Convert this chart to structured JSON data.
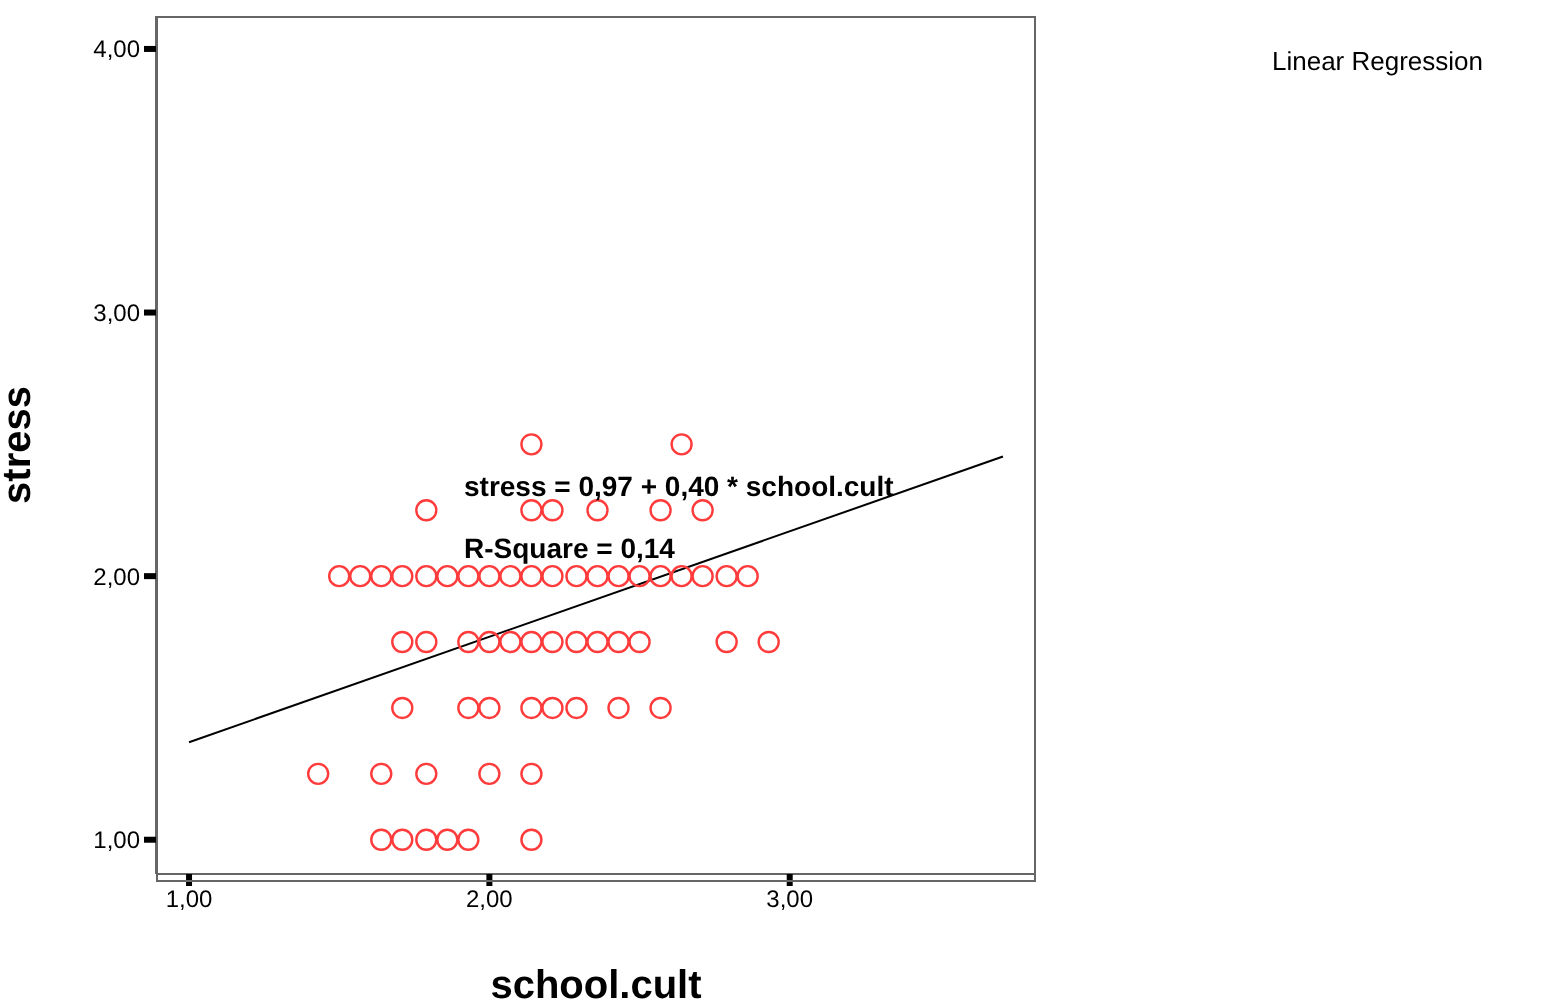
{
  "chart_data": {
    "type": "scatter",
    "xlabel": "school.cult",
    "ylabel": "stress",
    "annotations": [
      "Linear Regression",
      "stress = 0,97 + 0,40 * school.cult",
      "R-Square = 0,14"
    ],
    "xlim": [
      0.89,
      3.82
    ],
    "ylim": [
      0.87,
      4.125
    ],
    "xticks": [
      {
        "value": 1,
        "label": "1,00"
      },
      {
        "value": 2,
        "label": "2,00"
      },
      {
        "value": 3,
        "label": "3,00"
      }
    ],
    "yticks": [
      {
        "value": 1,
        "label": "1,00"
      },
      {
        "value": 2,
        "label": "2,00"
      },
      {
        "value": 3,
        "label": "3,00"
      },
      {
        "value": 4,
        "label": "4,00"
      }
    ],
    "grid": false,
    "marker": "circle",
    "series": [
      {
        "color": "#ff3b3b",
        "x": [
          2.14,
          2.64,
          1.79,
          2.14,
          2.21,
          2.36,
          2.57,
          2.71,
          1.5,
          1.57,
          1.64,
          1.71,
          1.79,
          1.86,
          1.93,
          2.0,
          2.07,
          2.14,
          2.21,
          2.29,
          2.36,
          2.43,
          2.5,
          2.57,
          2.64,
          2.71,
          2.79,
          2.86,
          1.71,
          1.79,
          1.93,
          2.0,
          2.07,
          2.14,
          2.21,
          2.29,
          2.36,
          2.43,
          2.5,
          2.79,
          2.93,
          1.71,
          1.93,
          2.0,
          2.14,
          2.21,
          2.29,
          2.43,
          2.57,
          1.43,
          1.64,
          1.79,
          2.0,
          2.14,
          1.64,
          1.71,
          1.79,
          1.86,
          1.93,
          2.14
        ],
        "values": [
          2.5,
          2.5,
          2.25,
          2.25,
          2.25,
          2.25,
          2.25,
          2.25,
          2,
          2,
          2,
          2,
          2,
          2,
          2,
          2,
          2,
          2,
          2,
          2,
          2,
          2,
          2,
          2,
          2,
          2,
          2,
          2,
          1.75,
          1.75,
          1.75,
          1.75,
          1.75,
          1.75,
          1.75,
          1.75,
          1.75,
          1.75,
          1.75,
          1.75,
          1.75,
          1.5,
          1.5,
          1.5,
          1.5,
          1.5,
          1.5,
          1.5,
          1.5,
          1.25,
          1.25,
          1.25,
          1.25,
          1.25,
          1,
          1,
          1,
          1,
          1,
          1
        ]
      },
      {
        "type": "line",
        "color": "#000000",
        "marker": "none",
        "x": [
          1.0,
          3.71
        ],
        "values": [
          1.37,
          2.454
        ]
      }
    ]
  }
}
